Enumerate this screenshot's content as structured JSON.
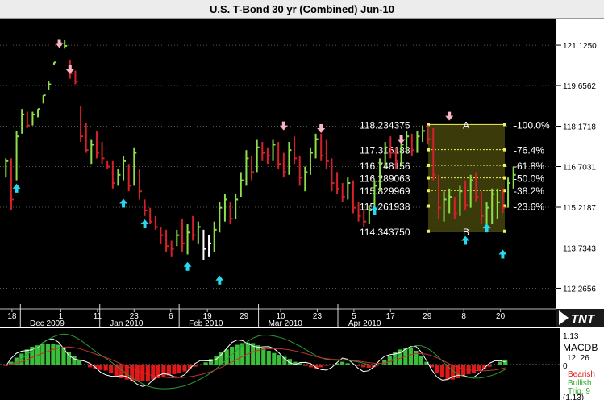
{
  "window": {
    "title": "U.S. T-Bond 30 yr (Combined) Jun-10"
  },
  "colors": {
    "background": "#000000",
    "up_bar": "#8ee04a",
    "down_bar": "#d6202a",
    "neutral_bar": "#ffffff",
    "buy_arrow": "#28d8ee",
    "sell_arrow": "#f7b4c2",
    "fib_fill": "#3a3a0a",
    "fib_line": "#f0f060",
    "hist_pos": "#3bbf3b",
    "hist_neg": "#e01818",
    "axis_panel": "#ffffff"
  },
  "logo": {
    "text": "TNT"
  },
  "chart_data": [
    {
      "type": "bar",
      "subtype": "ohlc",
      "title": "U.S. T-Bond 30 yr (Combined) Jun-10",
      "ylim": [
        111.75,
        121.95
      ],
      "y_ticks": [
        "121.1250",
        "119.6562",
        "118.1718",
        "116.7031",
        "115.2187",
        "113.7343",
        "112.2656"
      ],
      "x_day_ticks": [
        "18",
        "1",
        "11",
        "23",
        "6",
        "19",
        "29",
        "10",
        "23",
        "5",
        "17",
        "29",
        "8",
        "20"
      ],
      "x_month_labels": [
        "Dec 2009",
        "Jan 2010",
        "Feb 2010",
        "Mar 2010",
        "Apr 2010"
      ],
      "bars": [
        {
          "h": 117.0,
          "l": 116.3,
          "c": 116.9,
          "d": "up"
        },
        {
          "h": 117.0,
          "l": 115.1,
          "c": 115.5,
          "d": "down"
        },
        {
          "h": 118.0,
          "l": 116.2,
          "c": 117.8,
          "d": "up"
        },
        {
          "h": 118.8,
          "l": 117.9,
          "c": 118.6,
          "d": "up"
        },
        {
          "h": 118.7,
          "l": 118.1,
          "c": 118.2,
          "d": "down"
        },
        {
          "h": 118.7,
          "l": 118.2,
          "c": 118.6,
          "d": "up"
        },
        {
          "h": 118.8,
          "l": 118.5,
          "c": 118.8,
          "d": "up"
        },
        {
          "h": 119.3,
          "l": 119.0,
          "c": 119.3,
          "d": "up"
        },
        {
          "h": 119.8,
          "l": 119.5,
          "c": 119.7,
          "d": "up"
        },
        {
          "h": 120.5,
          "l": 120.4,
          "c": 120.5,
          "d": "up"
        },
        {
          "h": 121.3,
          "l": 121.1,
          "c": 121.2,
          "d": "up"
        },
        {
          "h": 121.3,
          "l": 121.0,
          "c": 121.1,
          "d": "up"
        },
        {
          "h": 120.6,
          "l": 119.9,
          "c": 120.1,
          "d": "down"
        },
        {
          "h": 120.2,
          "l": 119.7,
          "c": 119.8,
          "d": "down"
        },
        {
          "h": 118.9,
          "l": 117.6,
          "c": 117.8,
          "d": "down"
        },
        {
          "h": 118.3,
          "l": 117.2,
          "c": 117.3,
          "d": "down"
        },
        {
          "h": 117.7,
          "l": 116.8,
          "c": 117.5,
          "d": "up"
        },
        {
          "h": 118.0,
          "l": 117.0,
          "c": 117.2,
          "d": "down"
        },
        {
          "h": 117.6,
          "l": 116.8,
          "c": 117.0,
          "d": "down"
        },
        {
          "h": 116.9,
          "l": 116.6,
          "c": 116.7,
          "d": "down"
        },
        {
          "h": 116.9,
          "l": 115.9,
          "c": 116.1,
          "d": "down"
        },
        {
          "h": 116.6,
          "l": 116.0,
          "c": 116.4,
          "d": "up"
        },
        {
          "h": 117.1,
          "l": 116.2,
          "c": 116.9,
          "d": "up"
        },
        {
          "h": 116.8,
          "l": 115.8,
          "c": 116.0,
          "d": "down"
        },
        {
          "h": 117.4,
          "l": 116.0,
          "c": 117.2,
          "d": "up"
        },
        {
          "h": 116.6,
          "l": 115.5,
          "c": 115.8,
          "d": "down"
        },
        {
          "h": 115.5,
          "l": 114.9,
          "c": 115.1,
          "d": "down"
        },
        {
          "h": 115.2,
          "l": 114.6,
          "c": 114.7,
          "d": "down"
        },
        {
          "h": 114.9,
          "l": 114.4,
          "c": 114.5,
          "d": "down"
        },
        {
          "h": 114.5,
          "l": 113.9,
          "c": 114.2,
          "d": "down"
        },
        {
          "h": 114.4,
          "l": 113.6,
          "c": 113.8,
          "d": "down"
        },
        {
          "h": 114.0,
          "l": 113.4,
          "c": 113.7,
          "d": "down"
        },
        {
          "h": 114.4,
          "l": 113.8,
          "c": 114.2,
          "d": "up"
        },
        {
          "h": 114.8,
          "l": 113.6,
          "c": 113.9,
          "d": "down"
        },
        {
          "h": 114.6,
          "l": 113.5,
          "c": 114.3,
          "d": "up"
        },
        {
          "h": 114.9,
          "l": 114.0,
          "c": 114.2,
          "d": "down"
        },
        {
          "h": 114.7,
          "l": 113.9,
          "c": 114.5,
          "d": "up"
        },
        {
          "h": 114.4,
          "l": 113.3,
          "c": 113.7,
          "d": "neutral"
        },
        {
          "h": 114.2,
          "l": 113.4,
          "c": 113.9,
          "d": "neutral"
        },
        {
          "h": 114.7,
          "l": 113.6,
          "c": 114.4,
          "d": "up"
        },
        {
          "h": 115.4,
          "l": 114.3,
          "c": 115.2,
          "d": "up"
        },
        {
          "h": 115.7,
          "l": 114.7,
          "c": 115.5,
          "d": "up"
        },
        {
          "h": 115.4,
          "l": 114.6,
          "c": 114.8,
          "d": "down"
        },
        {
          "h": 115.7,
          "l": 114.8,
          "c": 115.5,
          "d": "up"
        },
        {
          "h": 116.5,
          "l": 115.6,
          "c": 116.2,
          "d": "up"
        },
        {
          "h": 117.3,
          "l": 116.0,
          "c": 117.0,
          "d": "up"
        },
        {
          "h": 117.1,
          "l": 116.2,
          "c": 116.5,
          "d": "down"
        },
        {
          "h": 117.7,
          "l": 116.5,
          "c": 117.4,
          "d": "up"
        },
        {
          "h": 117.6,
          "l": 116.9,
          "c": 117.2,
          "d": "down"
        },
        {
          "h": 117.4,
          "l": 116.8,
          "c": 117.1,
          "d": "down"
        },
        {
          "h": 117.7,
          "l": 116.9,
          "c": 117.5,
          "d": "up"
        },
        {
          "h": 117.6,
          "l": 116.6,
          "c": 116.8,
          "d": "down"
        },
        {
          "h": 117.2,
          "l": 116.3,
          "c": 116.5,
          "d": "down"
        },
        {
          "h": 117.6,
          "l": 116.4,
          "c": 117.3,
          "d": "up"
        },
        {
          "h": 117.8,
          "l": 116.8,
          "c": 117.0,
          "d": "down"
        },
        {
          "h": 117.1,
          "l": 116.0,
          "c": 116.3,
          "d": "down"
        },
        {
          "h": 116.7,
          "l": 115.8,
          "c": 116.5,
          "d": "up"
        },
        {
          "h": 117.4,
          "l": 116.4,
          "c": 117.2,
          "d": "up"
        },
        {
          "h": 117.9,
          "l": 117.0,
          "c": 117.7,
          "d": "up"
        },
        {
          "h": 117.9,
          "l": 116.9,
          "c": 117.1,
          "d": "down"
        },
        {
          "h": 117.7,
          "l": 116.6,
          "c": 116.9,
          "d": "down"
        },
        {
          "h": 117.0,
          "l": 115.8,
          "c": 116.1,
          "d": "down"
        },
        {
          "h": 116.5,
          "l": 115.7,
          "c": 115.9,
          "d": "down"
        },
        {
          "h": 116.1,
          "l": 115.4,
          "c": 115.6,
          "d": "down"
        },
        {
          "h": 116.3,
          "l": 115.5,
          "c": 116.1,
          "d": "up"
        },
        {
          "h": 116.2,
          "l": 115.0,
          "c": 115.2,
          "d": "down"
        },
        {
          "h": 115.4,
          "l": 114.7,
          "c": 114.9,
          "d": "down"
        },
        {
          "h": 115.1,
          "l": 114.5,
          "c": 114.7,
          "d": "down"
        },
        {
          "h": 115.3,
          "l": 114.6,
          "c": 115.1,
          "d": "up"
        },
        {
          "h": 116.2,
          "l": 115.0,
          "c": 116.0,
          "d": "up"
        },
        {
          "h": 117.0,
          "l": 115.8,
          "c": 116.8,
          "d": "up"
        },
        {
          "h": 117.6,
          "l": 116.6,
          "c": 117.4,
          "d": "up"
        },
        {
          "h": 117.8,
          "l": 117.0,
          "c": 117.2,
          "d": "down"
        },
        {
          "h": 117.4,
          "l": 116.6,
          "c": 116.9,
          "d": "down"
        },
        {
          "h": 117.7,
          "l": 116.7,
          "c": 117.5,
          "d": "up"
        },
        {
          "h": 118.0,
          "l": 117.2,
          "c": 117.8,
          "d": "up"
        },
        {
          "h": 117.9,
          "l": 117.1,
          "c": 117.3,
          "d": "down"
        },
        {
          "h": 118.0,
          "l": 117.2,
          "c": 117.8,
          "d": "up"
        },
        {
          "h": 118.2,
          "l": 117.6,
          "c": 118.0,
          "d": "up"
        },
        {
          "h": 118.2,
          "l": 117.5,
          "c": 117.7,
          "d": "down"
        },
        {
          "h": 118.1,
          "l": 116.2,
          "c": 116.4,
          "d": "down"
        },
        {
          "h": 116.4,
          "l": 114.8,
          "c": 115.2,
          "d": "down"
        },
        {
          "h": 115.8,
          "l": 114.7,
          "c": 115.5,
          "d": "up"
        },
        {
          "h": 115.9,
          "l": 115.0,
          "c": 115.6,
          "d": "up"
        },
        {
          "h": 115.6,
          "l": 114.8,
          "c": 115.0,
          "d": "down"
        },
        {
          "h": 116.0,
          "l": 114.9,
          "c": 115.8,
          "d": "up"
        },
        {
          "h": 116.2,
          "l": 115.1,
          "c": 115.3,
          "d": "down"
        },
        {
          "h": 116.4,
          "l": 115.2,
          "c": 116.2,
          "d": "up"
        },
        {
          "h": 116.5,
          "l": 115.4,
          "c": 115.6,
          "d": "down"
        },
        {
          "h": 115.8,
          "l": 114.6,
          "c": 114.9,
          "d": "down"
        },
        {
          "h": 115.4,
          "l": 114.4,
          "c": 115.2,
          "d": "up"
        },
        {
          "h": 115.9,
          "l": 114.6,
          "c": 115.7,
          "d": "up"
        },
        {
          "h": 115.9,
          "l": 114.8,
          "c": 115.4,
          "d": "up"
        },
        {
          "h": 115.9,
          "l": 115.0,
          "c": 115.2,
          "d": "down"
        },
        {
          "h": 116.3,
          "l": 115.2,
          "c": 116.1,
          "d": "up"
        },
        {
          "h": 116.7,
          "l": 115.9,
          "c": 116.4,
          "d": "up"
        }
      ],
      "arrows": [
        {
          "i": 2,
          "y": 115.9,
          "dir": "up"
        },
        {
          "i": 10,
          "y": 121.2,
          "dir": "down"
        },
        {
          "i": 12,
          "y": 120.25,
          "dir": "down"
        },
        {
          "i": 22,
          "y": 115.35,
          "dir": "up"
        },
        {
          "i": 26,
          "y": 114.6,
          "dir": "up"
        },
        {
          "i": 34,
          "y": 113.05,
          "dir": "up"
        },
        {
          "i": 40,
          "y": 112.55,
          "dir": "up"
        },
        {
          "i": 52,
          "y": 118.2,
          "dir": "down"
        },
        {
          "i": 59,
          "y": 118.1,
          "dir": "down"
        },
        {
          "i": 69,
          "y": 115.1,
          "dir": "up"
        },
        {
          "i": 74,
          "y": 117.7,
          "dir": "down"
        },
        {
          "i": 83,
          "y": 118.55,
          "dir": "down"
        },
        {
          "i": 86,
          "y": 114.0,
          "dir": "up"
        },
        {
          "i": 90,
          "y": 114.45,
          "dir": "up"
        },
        {
          "i": 93,
          "y": 113.5,
          "dir": "up"
        }
      ]
    },
    {
      "type": "bar",
      "subtype": "macd-histogram",
      "title": "MACDB",
      "y_ticks": [
        "1.13",
        "0"
      ],
      "y_low_label": "(1.13)",
      "values": [
        -0.05,
        0.1,
        0.25,
        0.4,
        0.55,
        0.65,
        0.7,
        0.75,
        0.75,
        0.75,
        0.72,
        0.62,
        0.45,
        0.3,
        0.15,
        0.0,
        -0.1,
        -0.15,
        -0.2,
        -0.22,
        -0.3,
        -0.42,
        -0.5,
        -0.55,
        -0.6,
        -0.62,
        -0.62,
        -0.6,
        -0.55,
        -0.5,
        -0.45,
        -0.4,
        -0.35,
        -0.3,
        -0.25,
        -0.15,
        -0.08,
        0.0,
        0.08,
        0.2,
        0.32,
        0.45,
        0.55,
        0.65,
        0.72,
        0.78,
        0.8,
        0.78,
        0.7,
        0.6,
        0.5,
        0.42,
        0.35,
        0.28,
        0.2,
        0.1,
        0.05,
        -0.05,
        -0.1,
        -0.15,
        -0.1,
        -0.05,
        0.0,
        0.05,
        0.1,
        0.05,
        0.0,
        -0.05,
        -0.1,
        -0.12,
        -0.1,
        0.0,
        0.15,
        0.3,
        0.45,
        0.55,
        0.62,
        0.6,
        0.5,
        0.3,
        0.1,
        -0.1,
        -0.3,
        -0.45,
        -0.55,
        -0.55,
        -0.5,
        -0.42,
        -0.35,
        -0.3,
        -0.22,
        -0.15,
        -0.08,
        0.0,
        0.1,
        0.18
      ]
    }
  ],
  "fibonacci": {
    "point_a_label": "A",
    "point_b_label": "B",
    "levels": [
      {
        "price": "118.234375",
        "pct": "-100.0%",
        "v": 118.234375
      },
      {
        "price": "117.316188",
        "pct": "-76.4%",
        "v": 117.316188
      },
      {
        "price": "116.748156",
        "pct": "-61.8%",
        "v": 116.748156
      },
      {
        "price": "116.289063",
        "pct": "-50.0%",
        "v": 116.289063
      },
      {
        "price": "115.829969",
        "pct": "-38.2%",
        "v": 115.829969
      },
      {
        "price": "115.261938",
        "pct": "-23.6%",
        "v": 115.261938
      },
      {
        "price": "114.343750",
        "pct": "",
        "v": 114.34375
      }
    ]
  },
  "macd_legend": {
    "title": "MACDB",
    "value_fragment": "12, 26",
    "bearish": "Bearish",
    "bullish": "Bullish",
    "trig": "Trig. 9"
  }
}
